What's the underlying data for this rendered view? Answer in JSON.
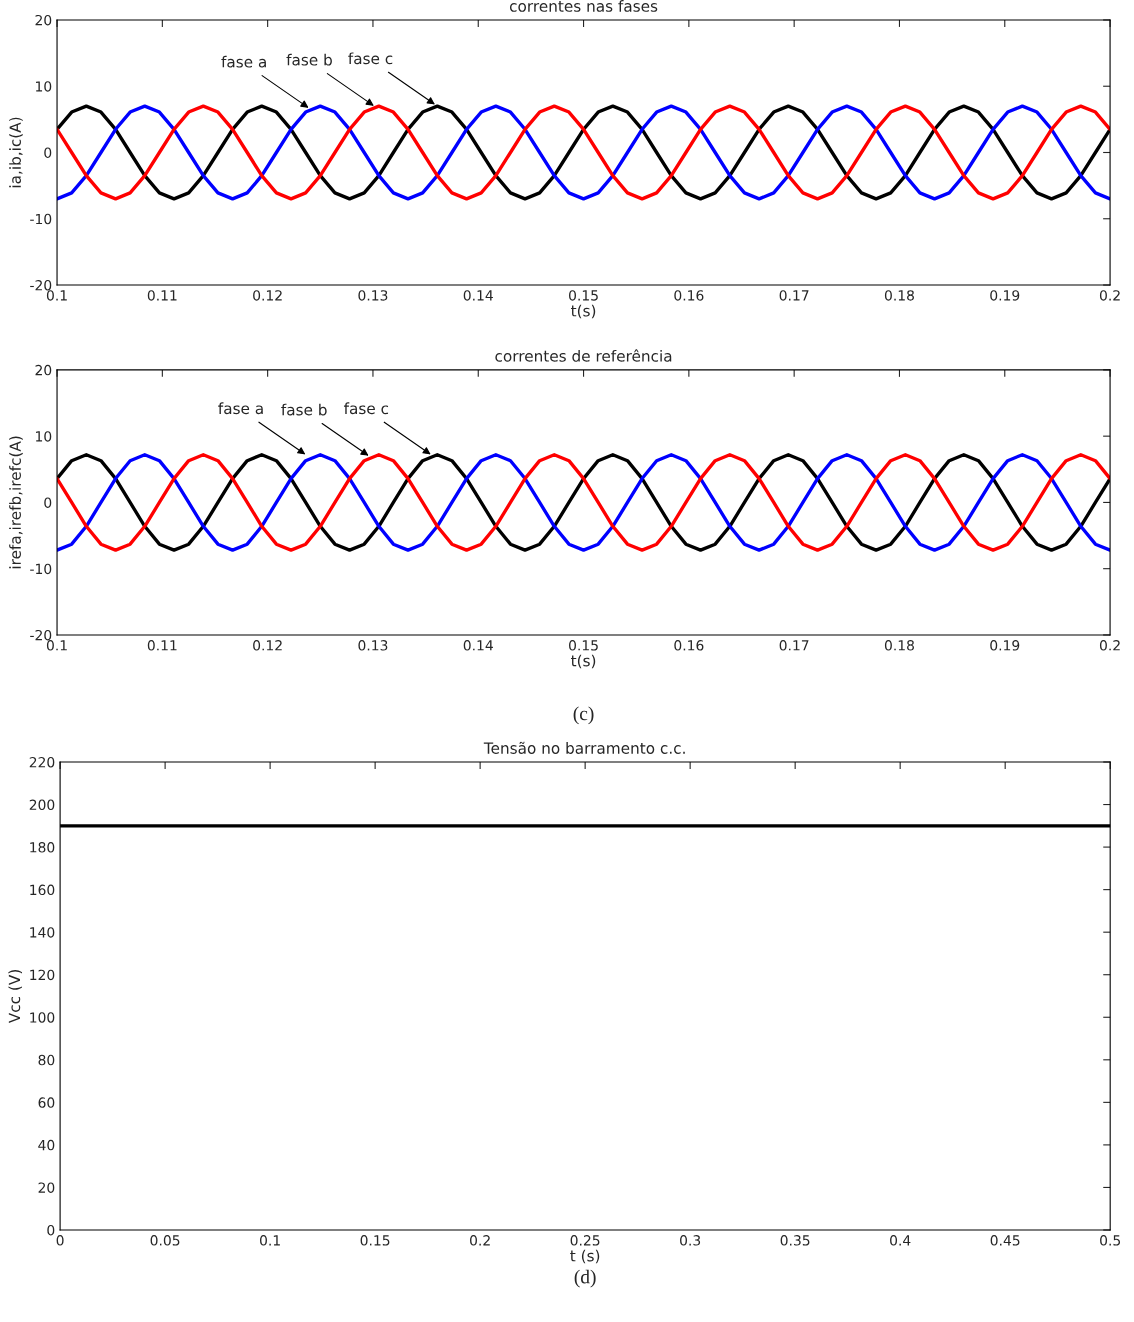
{
  "chart_data": [
    {
      "type": "line",
      "title": "correntes nas fases",
      "xlabel": "t(s)",
      "ylabel": "ia,ib,ic(A)",
      "x": [
        0.1,
        0.10139,
        0.10278,
        0.10417,
        0.10556,
        0.10694,
        0.10833,
        0.10972,
        0.11111,
        0.1125,
        0.11389,
        0.11528,
        0.11667,
        0.11806,
        0.11944,
        0.12083,
        0.12222,
        0.12361,
        0.125,
        0.12639,
        0.12778,
        0.12917,
        0.13056,
        0.13194,
        0.13333,
        0.13472,
        0.13611,
        0.1375,
        0.13889,
        0.14028,
        0.14167,
        0.14306,
        0.14444,
        0.14583,
        0.14722,
        0.14861,
        0.15,
        0.15139,
        0.15278,
        0.15417,
        0.15556,
        0.15694,
        0.15833,
        0.15972,
        0.16111,
        0.1625,
        0.16389,
        0.16528,
        0.16667,
        0.16806,
        0.16944,
        0.17083,
        0.17222,
        0.17361,
        0.175,
        0.17639,
        0.17778,
        0.17917,
        0.18056,
        0.18194,
        0.18333,
        0.18472,
        0.18611,
        0.1875,
        0.18889,
        0.19028,
        0.19167,
        0.19306,
        0.19444,
        0.19583,
        0.19722,
        0.19861,
        0.2
      ],
      "series": [
        {
          "color": "#000000",
          "values": [
            3.5,
            6.1,
            7,
            6.1,
            3.5,
            0,
            -3.5,
            -6.1,
            -7,
            -6.1,
            -3.5,
            0,
            3.5,
            6.1,
            7,
            6.1,
            3.5,
            0,
            -3.5,
            -6.1,
            -7,
            -6.1,
            -3.5,
            0,
            3.5,
            6.1,
            7,
            6.1,
            3.5,
            0,
            -3.5,
            -6.1,
            -7,
            -6.1,
            -3.5,
            0,
            3.5,
            6.1,
            7,
            6.1,
            3.5,
            0,
            -3.5,
            -6.1,
            -7,
            -6.1,
            -3.5,
            0,
            3.5,
            6.1,
            7,
            6.1,
            3.5,
            0,
            -3.5,
            -6.1,
            -7,
            -6.1,
            -3.5,
            0,
            3.5,
            6.1,
            7,
            6.1,
            3.5,
            0,
            -3.5,
            -6.1,
            -7,
            -6.1,
            -3.5,
            0,
            3.5
          ]
        },
        {
          "color": "#0000ff",
          "values": [
            -7,
            -6.1,
            -3.5,
            0,
            3.5,
            6.1,
            7,
            6.1,
            3.5,
            0,
            -3.5,
            -6.1,
            -7,
            -6.1,
            -3.5,
            0,
            3.5,
            6.1,
            7,
            6.1,
            3.5,
            0,
            -3.5,
            -6.1,
            -7,
            -6.1,
            -3.5,
            0,
            3.5,
            6.1,
            7,
            6.1,
            3.5,
            0,
            -3.5,
            -6.1,
            -7,
            -6.1,
            -3.5,
            0,
            3.5,
            6.1,
            7,
            6.1,
            3.5,
            0,
            -3.5,
            -6.1,
            -7,
            -6.1,
            -3.5,
            0,
            3.5,
            6.1,
            7,
            6.1,
            3.5,
            0,
            -3.5,
            -6.1,
            -7,
            -6.1,
            -3.5,
            0,
            3.5,
            6.1,
            7,
            6.1,
            3.5,
            0,
            -3.5,
            -6.1,
            -7
          ]
        },
        {
          "color": "#ff0000",
          "values": [
            3.5,
            0,
            -3.5,
            -6.1,
            -7,
            -6.1,
            -3.5,
            0,
            3.5,
            6.1,
            7,
            6.1,
            3.5,
            0,
            -3.5,
            -6.1,
            -7,
            -6.1,
            -3.5,
            0,
            3.5,
            6.1,
            7,
            6.1,
            3.5,
            0,
            -3.5,
            -6.1,
            -7,
            -6.1,
            -3.5,
            0,
            3.5,
            6.1,
            7,
            6.1,
            3.5,
            0,
            -3.5,
            -6.1,
            -7,
            -6.1,
            -3.5,
            0,
            3.5,
            6.1,
            7,
            6.1,
            3.5,
            0,
            -3.5,
            -6.1,
            -7,
            -6.1,
            -3.5,
            0,
            3.5,
            6.1,
            7,
            6.1,
            3.5,
            0,
            -3.5,
            -6.1,
            -7,
            -6.1,
            -3.5,
            0,
            3.5,
            6.1,
            7,
            6.1,
            3.5
          ]
        }
      ],
      "xlim": [
        0.1,
        0.2
      ],
      "xticks": [
        0.1,
        0.11,
        0.12,
        0.13,
        0.14,
        0.15,
        0.16,
        0.17,
        0.18,
        0.19,
        0.2
      ],
      "ylim": [
        -20,
        20
      ],
      "yticks": [
        -20,
        -10,
        0,
        10,
        20
      ],
      "annotations": [
        {
          "text": "fase a",
          "x": 0.1241,
          "y": 6.5
        },
        {
          "text": "fase b",
          "x": 0.1303,
          "y": 6.8
        },
        {
          "text": "fase c",
          "x": 0.1361,
          "y": 7
        }
      ]
    },
    {
      "type": "line",
      "title": "correntes de referência",
      "xlabel": "t(s)",
      "ylabel": "irefa,irefb,irefc(A)",
      "x": [
        0.1,
        0.10139,
        0.10278,
        0.10417,
        0.10556,
        0.10694,
        0.10833,
        0.10972,
        0.11111,
        0.1125,
        0.11389,
        0.11528,
        0.11667,
        0.11806,
        0.11944,
        0.12083,
        0.12222,
        0.12361,
        0.125,
        0.12639,
        0.12778,
        0.12917,
        0.13056,
        0.13194,
        0.13333,
        0.13472,
        0.13611,
        0.1375,
        0.13889,
        0.14028,
        0.14167,
        0.14306,
        0.14444,
        0.14583,
        0.14722,
        0.14861,
        0.15,
        0.15139,
        0.15278,
        0.15417,
        0.15556,
        0.15694,
        0.15833,
        0.15972,
        0.16111,
        0.1625,
        0.16389,
        0.16528,
        0.16667,
        0.16806,
        0.16944,
        0.17083,
        0.17222,
        0.17361,
        0.175,
        0.17639,
        0.17778,
        0.17917,
        0.18056,
        0.18194,
        0.18333,
        0.18472,
        0.18611,
        0.1875,
        0.18889,
        0.19028,
        0.19167,
        0.19306,
        0.19444,
        0.19583,
        0.19722,
        0.19861,
        0.2
      ],
      "series": [
        {
          "color": "#000000",
          "values": [
            3.6,
            6.3,
            7.2,
            6.3,
            3.6,
            0,
            -3.6,
            -6.3,
            -7.2,
            -6.3,
            -3.6,
            0,
            3.6,
            6.3,
            7.2,
            6.3,
            3.6,
            0,
            -3.6,
            -6.3,
            -7.2,
            -6.3,
            -3.6,
            0,
            3.6,
            6.3,
            7.2,
            6.3,
            3.6,
            0,
            -3.6,
            -6.3,
            -7.2,
            -6.3,
            -3.6,
            0,
            3.6,
            6.3,
            7.2,
            6.3,
            3.6,
            0,
            -3.6,
            -6.3,
            -7.2,
            -6.3,
            -3.6,
            0,
            3.6,
            6.3,
            7.2,
            6.3,
            3.6,
            0,
            -3.6,
            -6.3,
            -7.2,
            -6.3,
            -3.6,
            0,
            3.6,
            6.3,
            7.2,
            6.3,
            3.6,
            0,
            -3.6,
            -6.3,
            -7.2,
            -6.3,
            -3.6,
            0,
            3.6
          ]
        },
        {
          "color": "#0000ff",
          "values": [
            -7.2,
            -6.3,
            -3.6,
            0,
            3.6,
            6.3,
            7.2,
            6.3,
            3.6,
            0,
            -3.6,
            -6.3,
            -7.2,
            -6.3,
            -3.6,
            0,
            3.6,
            6.3,
            7.2,
            6.3,
            3.6,
            0,
            -3.6,
            -6.3,
            -7.2,
            -6.3,
            -3.6,
            0,
            3.6,
            6.3,
            7.2,
            6.3,
            3.6,
            0,
            -3.6,
            -6.3,
            -7.2,
            -6.3,
            -3.6,
            0,
            3.6,
            6.3,
            7.2,
            6.3,
            3.6,
            0,
            -3.6,
            -6.3,
            -7.2,
            -6.3,
            -3.6,
            0,
            3.6,
            6.3,
            7.2,
            6.3,
            3.6,
            0,
            -3.6,
            -6.3,
            -7.2,
            -6.3,
            -3.6,
            0,
            3.6,
            6.3,
            7.2,
            6.3,
            3.6,
            0,
            -3.6,
            -6.3,
            -7.2
          ]
        },
        {
          "color": "#ff0000",
          "values": [
            3.6,
            0,
            -3.6,
            -6.3,
            -7.2,
            -6.3,
            -3.6,
            0,
            3.6,
            6.3,
            7.2,
            6.3,
            3.6,
            0,
            -3.6,
            -6.3,
            -7.2,
            -6.3,
            -3.6,
            0,
            3.6,
            6.3,
            7.2,
            6.3,
            3.6,
            0,
            -3.6,
            -6.3,
            -7.2,
            -6.3,
            -3.6,
            0,
            3.6,
            6.3,
            7.2,
            6.3,
            3.6,
            0,
            -3.6,
            -6.3,
            -7.2,
            -6.3,
            -3.6,
            0,
            3.6,
            6.3,
            7.2,
            6.3,
            3.6,
            0,
            -3.6,
            -6.3,
            -7.2,
            -6.3,
            -3.6,
            0,
            3.6,
            6.3,
            7.2,
            6.3,
            3.6,
            0,
            -3.6,
            -6.3,
            -7.2,
            -6.3,
            -3.6,
            0,
            3.6,
            6.3,
            7.2,
            6.3,
            3.6
          ]
        }
      ],
      "xlim": [
        0.1,
        0.2
      ],
      "xticks": [
        0.1,
        0.11,
        0.12,
        0.13,
        0.14,
        0.15,
        0.16,
        0.17,
        0.18,
        0.19,
        0.2
      ],
      "ylim": [
        -20,
        20
      ],
      "yticks": [
        -20,
        -10,
        0,
        10,
        20
      ],
      "annotations": [
        {
          "text": "fase a",
          "x": 0.1238,
          "y": 7
        },
        {
          "text": "fase b",
          "x": 0.1298,
          "y": 6.8
        },
        {
          "text": "fase c",
          "x": 0.1357,
          "y": 7
        },
        "(c)"
      ]
    },
    {
      "type": "line",
      "title": "Tensão no barramento c.c.",
      "xlabel": "t (s)",
      "ylabel": "Vcc (V)",
      "x": [
        0,
        0.05,
        0.1,
        0.15,
        0.2,
        0.25,
        0.3,
        0.35,
        0.4,
        0.45,
        0.5
      ],
      "series": [
        {
          "color": "#000000",
          "values": [
            190,
            190,
            190,
            190,
            190,
            190,
            190,
            190,
            190,
            190,
            190
          ]
        }
      ],
      "xlim": [
        0,
        0.5
      ],
      "xticks": [
        0,
        0.05,
        0.1,
        0.15,
        0.2,
        0.25,
        0.3,
        0.35,
        0.4,
        0.45,
        0.5
      ],
      "ylim": [
        0,
        220
      ],
      "yticks": [
        0,
        20,
        40,
        60,
        80,
        100,
        120,
        140,
        160,
        180,
        200,
        220
      ],
      "annotations": [
        "(d)"
      ]
    }
  ]
}
